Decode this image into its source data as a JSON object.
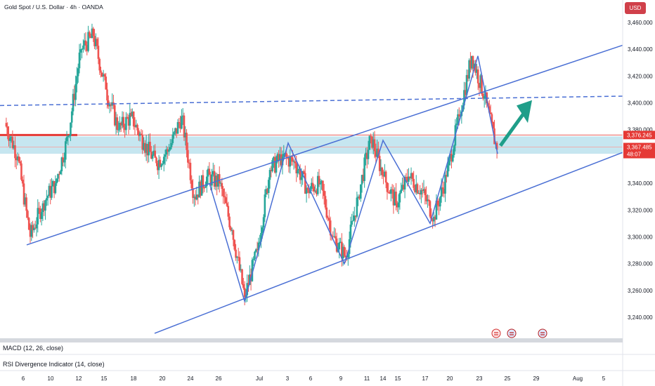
{
  "header": {
    "title": "Gold Spot / U.S. Dollar · 4h · OANDA",
    "currency": "USD"
  },
  "price_labels": {
    "upper": "3,376.245",
    "lower": "3,367.485",
    "countdown": "48:07"
  },
  "panes": {
    "macd": "MACD (12, 26, close)",
    "rsi": "RSI Divergence Indicator (14, close)"
  },
  "colors": {
    "up": "#26a69a",
    "down": "#ef5350",
    "trendline": "#4a6fd4",
    "arrow": "#1f9e89",
    "band": "#a8d8e8",
    "redline": "#e53935"
  },
  "icons": [
    "lightning-icon",
    "us-flag-icon",
    "us-flag-icon"
  ],
  "chart_data": {
    "type": "candlestick",
    "title": "Gold Spot / U.S. Dollar · 4h · OANDA",
    "y_ticks": [
      3460,
      3440,
      3420,
      3400,
      3380,
      3340,
      3320,
      3300,
      3280,
      3260,
      3240
    ],
    "y_tick_labels": [
      "3,460.000",
      "3,440.000",
      "3,420.000",
      "3,400.000",
      "3,380.000",
      "3,340.000",
      "3,320.000",
      "3,300.000",
      "3,280.000",
      "3,260.000",
      "3,240.000"
    ],
    "ylim": [
      3230,
      3470
    ],
    "x_tick_labels": [
      "6",
      "10",
      "12",
      "15",
      "18",
      "20",
      "24",
      "26",
      "Jul",
      "3",
      "6",
      "9",
      "11",
      "14",
      "15",
      "17",
      "20",
      "23",
      "25",
      "29",
      "Aug",
      "5"
    ],
    "series": [
      {
        "name": "",
        "points": [
          {
            "x": 0,
            "y": 3385
          },
          {
            "x": 1,
            "y": 3360
          },
          {
            "x": 2,
            "y": 3300
          },
          {
            "x": 3,
            "y": 3325
          },
          {
            "x": 4,
            "y": 3340
          },
          {
            "x": 5,
            "y": 3375
          },
          {
            "x": 6,
            "y": 3440
          },
          {
            "x": 7,
            "y": 3450
          },
          {
            "x": 8,
            "y": 3410
          },
          {
            "x": 9,
            "y": 3380
          },
          {
            "x": 10,
            "y": 3390
          },
          {
            "x": 11,
            "y": 3370
          },
          {
            "x": 12,
            "y": 3355
          },
          {
            "x": 13,
            "y": 3365
          },
          {
            "x": 14,
            "y": 3390
          },
          {
            "x": 15,
            "y": 3330
          },
          {
            "x": 16,
            "y": 3345
          },
          {
            "x": 17,
            "y": 3340
          },
          {
            "x": 18,
            "y": 3305
          },
          {
            "x": 19,
            "y": 3255
          },
          {
            "x": 20,
            "y": 3290
          },
          {
            "x": 21,
            "y": 3350
          },
          {
            "x": 22,
            "y": 3360
          },
          {
            "x": 23,
            "y": 3355
          },
          {
            "x": 24,
            "y": 3335
          },
          {
            "x": 25,
            "y": 3340
          },
          {
            "x": 26,
            "y": 3300
          },
          {
            "x": 27,
            "y": 3285
          },
          {
            "x": 28,
            "y": 3330
          },
          {
            "x": 29,
            "y": 3375
          },
          {
            "x": 30,
            "y": 3345
          },
          {
            "x": 31,
            "y": 3325
          },
          {
            "x": 32,
            "y": 3345
          },
          {
            "x": 33,
            "y": 3335
          },
          {
            "x": 34,
            "y": 3315
          },
          {
            "x": 35,
            "y": 3345
          },
          {
            "x": 36,
            "y": 3390
          },
          {
            "x": 37,
            "y": 3435
          },
          {
            "x": 38,
            "y": 3405
          },
          {
            "x": 39,
            "y": 3365
          }
        ]
      }
    ]
  }
}
